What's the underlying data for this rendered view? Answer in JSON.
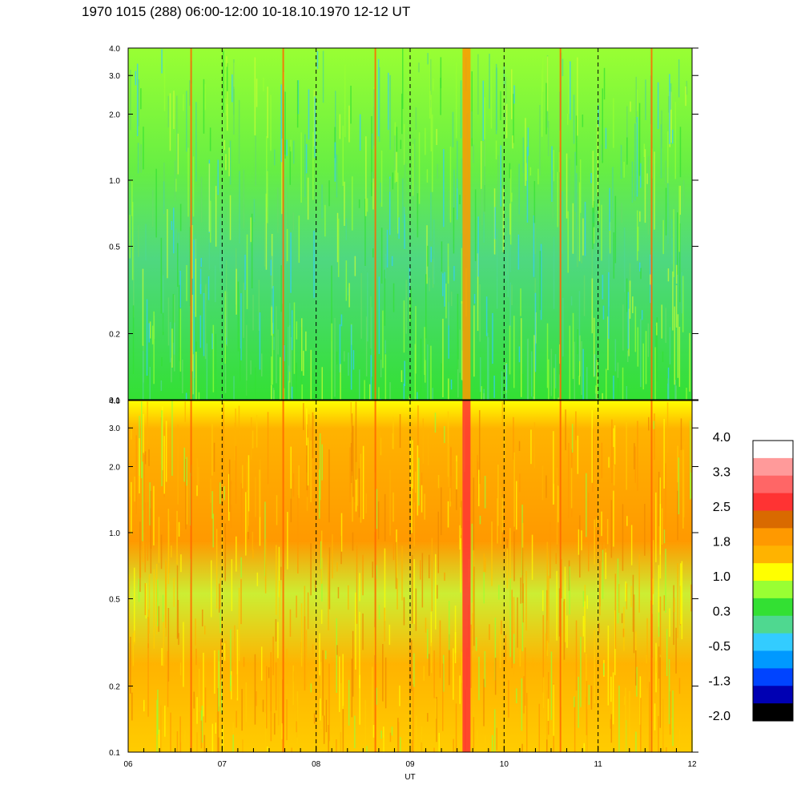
{
  "title": "1970 1015 (288) 06:00-12:00 10-18.10.1970  12-12 UT",
  "chart_data": {
    "type": "heatmap",
    "xlabel": "UT",
    "x_tick_labels": [
      "06",
      "07",
      "08",
      "09",
      "10",
      "11",
      "12"
    ],
    "x_range": [
      6,
      12
    ],
    "dashed_vlines": [
      7,
      8,
      9,
      10,
      11
    ],
    "panels": [
      {
        "panel": "upper",
        "y_scale": "log",
        "y_range": [
          0.1,
          4.0
        ],
        "y_tick_values": [
          0.1,
          0.2,
          0.5,
          1.0,
          2.0,
          3.0,
          4.0
        ],
        "y_tick_labels": [
          "0.1",
          "0.2",
          "0.5",
          "1.0",
          "2.0",
          "3.0",
          "4.0"
        ],
        "dominant_color": "#33e033"
      },
      {
        "panel": "lower",
        "y_scale": "log",
        "y_range": [
          0.1,
          4.0
        ],
        "y_tick_values": [
          0.1,
          0.2,
          0.5,
          1.0,
          2.0,
          3.0,
          4.0
        ],
        "y_tick_labels": [
          "0.1",
          "0.2",
          "0.5",
          "1.0",
          "2.0",
          "3.0",
          "4.0"
        ],
        "dominant_color": "#ffb300"
      }
    ],
    "bright_vertical_bands_ut": [
      6.67,
      7.65,
      8.63,
      9.6,
      10.6,
      11.57
    ],
    "colorbar": {
      "tick_labels": [
        "4.0",
        "3.3",
        "2.5",
        "1.8",
        "1.0",
        "0.3",
        "-0.5",
        "-1.3",
        "-2.0"
      ],
      "colors_top_to_bottom": [
        "#ffffff",
        "#ff9a9a",
        "#ff6666",
        "#ff3333",
        "#d96a00",
        "#ff9900",
        "#ffb300",
        "#ffff00",
        "#99ff33",
        "#33e033",
        "#4fd890",
        "#33ccff",
        "#0099ff",
        "#0044ff",
        "#0000b3",
        "#000000"
      ]
    }
  }
}
